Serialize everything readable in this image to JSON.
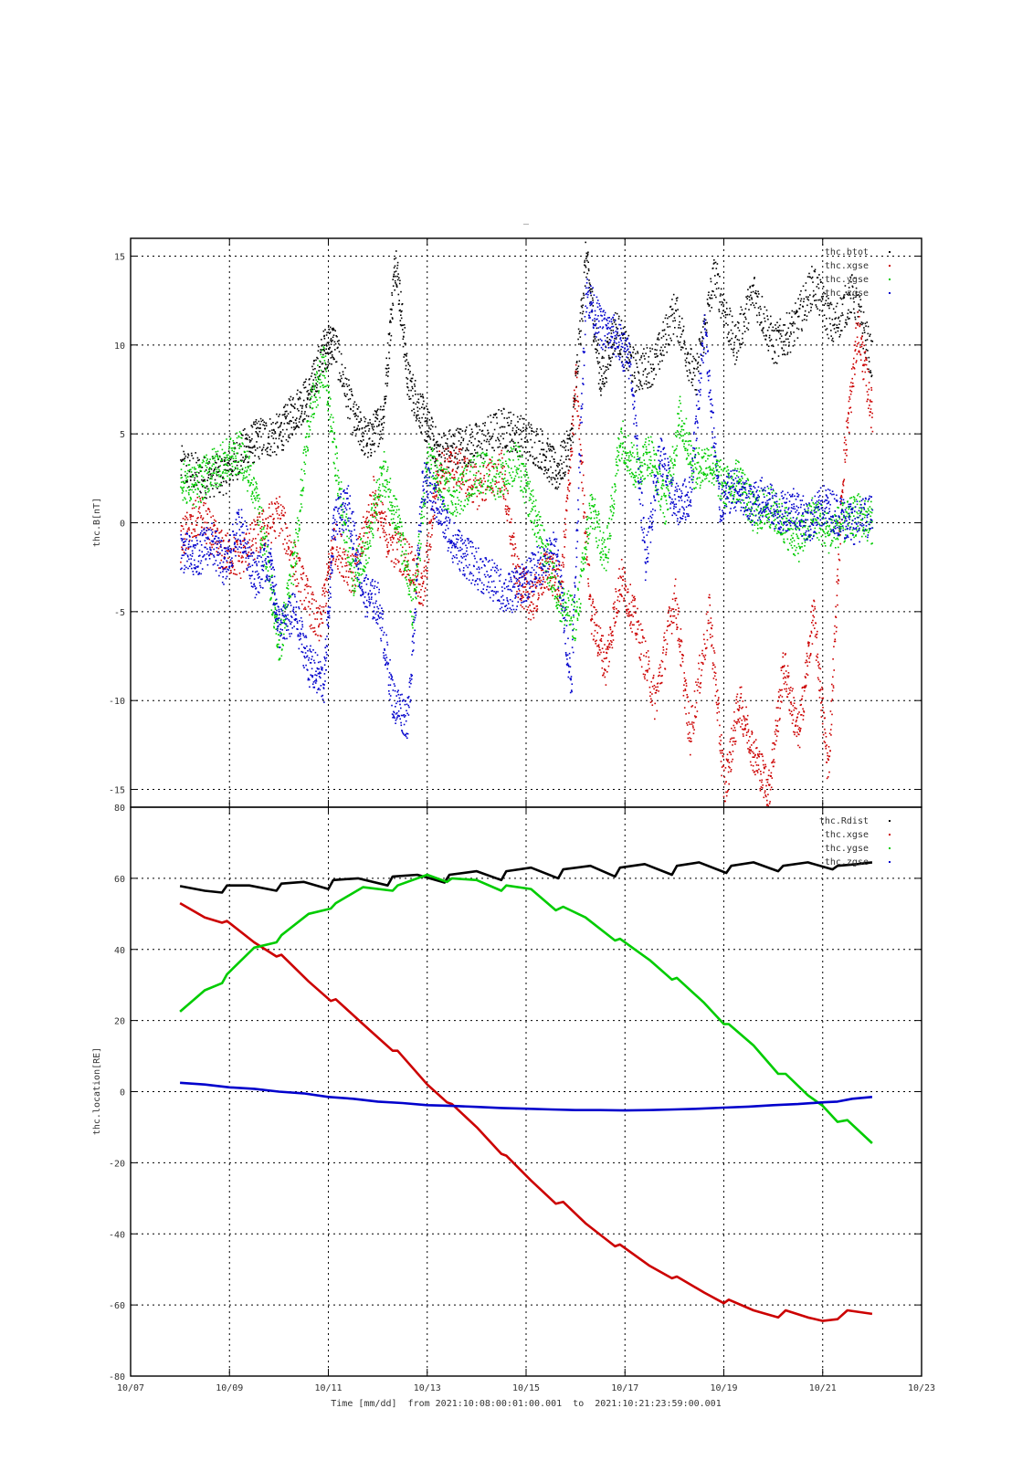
{
  "figure_title": "_",
  "chart_data": [
    {
      "type": "scatter",
      "ylabel": "thc.B[nT]",
      "ylim": [
        -16,
        16
      ],
      "y_ticks": [
        15,
        10,
        5,
        0,
        -5,
        -10,
        -15
      ],
      "y_tick_labels": [
        "15",
        "10",
        "5",
        "0",
        "-5",
        "-10",
        "-15"
      ],
      "xlim": [
        "10/07",
        "10/23"
      ],
      "grid": true,
      "legend_position": "top-right",
      "series": [
        {
          "name": "thc.btot",
          "color": "#000000",
          "x": [
            8.0,
            8.5,
            8.9,
            9.3,
            9.6,
            10.0,
            10.3,
            10.6,
            10.9,
            11.1,
            11.5,
            11.8,
            12.1,
            12.35,
            12.6,
            12.9,
            13.2,
            13.6,
            14.0,
            14.5,
            14.9,
            15.3,
            15.6,
            15.9,
            16.2,
            16.5,
            16.8,
            17.2,
            17.6,
            18.0,
            18.4,
            18.8,
            19.2,
            19.6,
            20.0,
            20.4,
            20.8,
            21.2,
            21.6,
            22.0
          ],
          "y": [
            3.2,
            2.6,
            2.8,
            4.2,
            4.8,
            5.0,
            6.3,
            7.2,
            9.8,
            10.2,
            5.8,
            4.6,
            6.0,
            15.0,
            8.0,
            6.0,
            4.0,
            4.3,
            4.5,
            5.4,
            4.9,
            4.2,
            2.8,
            4.5,
            15.0,
            8.0,
            11.0,
            8.5,
            9.0,
            12.0,
            8.0,
            14.0,
            10.0,
            13.0,
            10.0,
            11.0,
            13.5,
            11.0,
            13.0,
            9.0
          ]
        },
        {
          "name": "thc.xgse",
          "color": "#cc0000",
          "x": [
            8.0,
            8.4,
            8.8,
            9.2,
            9.6,
            10.0,
            10.4,
            10.8,
            11.1,
            11.5,
            11.9,
            12.2,
            12.6,
            12.9,
            13.2,
            13.6,
            14.0,
            14.5,
            14.8,
            15.1,
            15.4,
            15.7,
            16.0,
            16.3,
            16.6,
            16.9,
            17.2,
            17.6,
            18.0,
            18.3,
            18.7,
            19.0,
            19.3,
            19.6,
            19.9,
            20.2,
            20.5,
            20.8,
            21.1,
            21.4,
            21.7,
            22.0
          ],
          "y": [
            -1.0,
            0.5,
            -1.5,
            -2.0,
            -0.5,
            0.5,
            -3.0,
            -6.0,
            -1.0,
            -3.0,
            1.5,
            -1.0,
            -2.0,
            -4.0,
            3.0,
            3.2,
            2.0,
            3.0,
            -3.0,
            -4.5,
            -2.5,
            -3.5,
            8.0,
            -5.0,
            -8.0,
            -3.0,
            -5.5,
            -10.0,
            -4.0,
            -12.0,
            -5.0,
            -15.0,
            -10.0,
            -13.0,
            -15.0,
            -8.0,
            -12.0,
            -5.0,
            -14.0,
            3.0,
            11.0,
            6.0
          ]
        },
        {
          "name": "thc.ygse",
          "color": "#00cc00",
          "x": [
            8.0,
            8.3,
            8.6,
            8.9,
            9.2,
            9.5,
            9.8,
            10.0,
            10.3,
            10.6,
            10.9,
            11.2,
            11.5,
            11.8,
            12.1,
            12.4,
            12.7,
            13.0,
            13.3,
            13.6,
            14.0,
            14.4,
            14.8,
            15.1,
            15.4,
            15.7,
            16.0,
            16.3,
            16.6,
            16.9,
            17.2,
            17.5,
            17.8,
            18.1,
            18.4,
            18.7,
            19.0,
            19.3,
            19.6,
            19.9,
            20.2,
            20.5,
            20.8,
            21.1,
            21.4,
            21.7,
            22.0
          ],
          "y": [
            2.5,
            2.0,
            3.0,
            3.5,
            4.0,
            2.0,
            -3.0,
            -7.0,
            -2.0,
            6.0,
            9.0,
            2.0,
            -3.0,
            -1.0,
            3.0,
            0.0,
            -5.0,
            3.5,
            2.0,
            1.5,
            3.0,
            2.5,
            3.5,
            1.0,
            -2.0,
            -4.5,
            -5.5,
            1.0,
            -2.0,
            5.0,
            3.0,
            4.0,
            1.0,
            6.0,
            3.0,
            3.5,
            2.0,
            2.5,
            0.5,
            1.0,
            0.0,
            -1.0,
            0.5,
            -0.5,
            0.0,
            0.5,
            0.0
          ]
        },
        {
          "name": "thc.zgse",
          "color": "#0000cc",
          "x": [
            8.0,
            8.3,
            8.6,
            8.9,
            9.2,
            9.5,
            9.8,
            10.0,
            10.3,
            10.6,
            10.9,
            11.1,
            11.4,
            11.7,
            12.0,
            12.3,
            12.6,
            12.9,
            13.2,
            13.5,
            13.8,
            14.2,
            14.6,
            14.9,
            15.2,
            15.6,
            15.9,
            16.2,
            16.5,
            16.8,
            17.1,
            17.4,
            17.7,
            18.0,
            18.3,
            18.6,
            18.9,
            19.2,
            19.5,
            19.8,
            20.1,
            20.4,
            20.7,
            21.0,
            21.3,
            21.6,
            22.0
          ],
          "y": [
            -1.5,
            -2.0,
            -1.0,
            -2.5,
            0.0,
            -3.0,
            -2.0,
            -6.0,
            -5.0,
            -8.0,
            -9.0,
            0.0,
            1.0,
            -4.0,
            -4.5,
            -10.0,
            -11.0,
            2.5,
            1.0,
            -1.0,
            -2.0,
            -3.0,
            -4.0,
            -3.5,
            -2.5,
            -1.5,
            -9.0,
            13.0,
            11.0,
            10.5,
            9.0,
            -2.0,
            4.0,
            1.0,
            1.5,
            11.0,
            1.0,
            2.0,
            1.0,
            1.5,
            0.5,
            1.0,
            0.0,
            1.0,
            0.5,
            0.0,
            0.5
          ]
        }
      ]
    },
    {
      "type": "line",
      "ylabel": "thc.location[RE]",
      "ylim": [
        -80,
        80
      ],
      "y_ticks": [
        80,
        60,
        40,
        20,
        0,
        -20,
        -40,
        -60,
        -80
      ],
      "y_tick_labels": [
        "80",
        "60",
        "40",
        "20",
        "0",
        "-20",
        "-40",
        "-60",
        "-80"
      ],
      "x_ticks": [
        "10/07",
        "10/09",
        "10/11",
        "10/13",
        "10/15",
        "10/17",
        "10/19",
        "10/21",
        "10/23"
      ],
      "xlim": [
        "10/07",
        "10/23"
      ],
      "xlabel": "Time [mm/dd]  from 2021:10:08:00:01:00.001  to  2021:10:21:23:59:00.001",
      "grid": true,
      "legend_position": "top-right",
      "series": [
        {
          "name": "thc.Rdist",
          "color": "#000000",
          "x": [
            8.0,
            8.5,
            8.85,
            8.95,
            9.4,
            9.95,
            10.05,
            10.5,
            11.0,
            11.1,
            11.6,
            12.2,
            12.3,
            12.8,
            13.35,
            13.45,
            14.0,
            14.5,
            14.6,
            15.1,
            15.65,
            15.75,
            16.3,
            16.8,
            16.9,
            17.4,
            17.95,
            18.05,
            18.5,
            19.05,
            19.15,
            19.6,
            20.1,
            20.2,
            20.7,
            21.2,
            21.3,
            21.7,
            22.0
          ],
          "y": [
            57.8,
            56.5,
            56.0,
            58.0,
            58.0,
            56.5,
            58.5,
            59.0,
            57.0,
            59.5,
            60.0,
            58.0,
            60.5,
            61.0,
            58.8,
            61.0,
            62.0,
            59.5,
            62.0,
            63.0,
            60.0,
            62.5,
            63.5,
            60.5,
            63.0,
            64.0,
            61.0,
            63.5,
            64.5,
            61.5,
            63.5,
            64.5,
            62.0,
            63.5,
            64.5,
            62.5,
            63.5,
            64.0,
            64.5
          ]
        },
        {
          "name": "thc.xgse",
          "color": "#cc0000",
          "x": [
            8.0,
            8.5,
            8.85,
            8.95,
            9.5,
            9.95,
            10.05,
            10.6,
            11.05,
            11.15,
            11.7,
            12.3,
            12.4,
            13.0,
            13.4,
            13.5,
            14.0,
            14.5,
            14.6,
            15.1,
            15.6,
            15.75,
            16.2,
            16.8,
            16.9,
            17.5,
            17.95,
            18.05,
            18.6,
            19.0,
            19.1,
            19.6,
            20.1,
            20.25,
            20.7,
            21.0,
            21.3,
            21.5,
            22.0
          ],
          "y": [
            53.0,
            49.0,
            47.5,
            48.0,
            42.0,
            38.0,
            38.5,
            31.0,
            25.5,
            26.0,
            19.0,
            11.5,
            11.5,
            2.0,
            -3.0,
            -3.5,
            -10.0,
            -17.5,
            -18.0,
            -25.0,
            -31.5,
            -31.0,
            -37.0,
            -43.5,
            -43.0,
            -49.0,
            -52.5,
            -52.0,
            -56.5,
            -59.5,
            -58.5,
            -61.5,
            -63.5,
            -61.5,
            -63.5,
            -64.5,
            -64.0,
            -61.5,
            -62.5
          ]
        },
        {
          "name": "thc.ygse",
          "color": "#00cc00",
          "x": [
            8.0,
            8.5,
            8.85,
            8.95,
            9.5,
            9.95,
            10.05,
            10.6,
            11.05,
            11.15,
            11.7,
            12.3,
            12.4,
            13.0,
            13.4,
            13.5,
            14.0,
            14.5,
            14.6,
            15.1,
            15.6,
            15.75,
            16.2,
            16.8,
            16.9,
            17.5,
            17.95,
            18.05,
            18.6,
            19.0,
            19.1,
            19.6,
            20.1,
            20.25,
            20.7,
            21.0,
            21.3,
            21.5,
            22.0
          ],
          "y": [
            22.5,
            28.5,
            30.5,
            33.0,
            40.5,
            42.0,
            44.0,
            50.0,
            51.5,
            53.0,
            57.5,
            56.5,
            58.0,
            61.0,
            59.0,
            60.0,
            59.5,
            56.5,
            58.0,
            57.0,
            51.0,
            52.0,
            49.0,
            42.5,
            43.0,
            37.0,
            31.5,
            32.0,
            25.0,
            19.0,
            19.0,
            13.0,
            5.0,
            5.0,
            -1.0,
            -4.0,
            -8.5,
            -8.0,
            -14.5
          ]
        },
        {
          "name": "thc.zgse",
          "color": "#0000cc",
          "x": [
            8.0,
            8.5,
            9.0,
            9.5,
            10.0,
            10.5,
            11.0,
            11.5,
            12.0,
            12.5,
            13.0,
            13.5,
            14.0,
            14.5,
            15.0,
            15.5,
            16.0,
            16.5,
            17.0,
            17.5,
            18.0,
            18.5,
            19.0,
            19.5,
            20.0,
            20.5,
            21.0,
            21.3,
            21.6,
            22.0
          ],
          "y": [
            2.5,
            2.0,
            1.2,
            0.8,
            0.0,
            -0.5,
            -1.5,
            -2.0,
            -2.8,
            -3.2,
            -3.8,
            -4.0,
            -4.3,
            -4.6,
            -4.8,
            -5.0,
            -5.2,
            -5.2,
            -5.3,
            -5.2,
            -5.0,
            -4.8,
            -4.5,
            -4.2,
            -3.8,
            -3.5,
            -3.0,
            -2.8,
            -2.0,
            -1.5
          ]
        }
      ]
    }
  ]
}
